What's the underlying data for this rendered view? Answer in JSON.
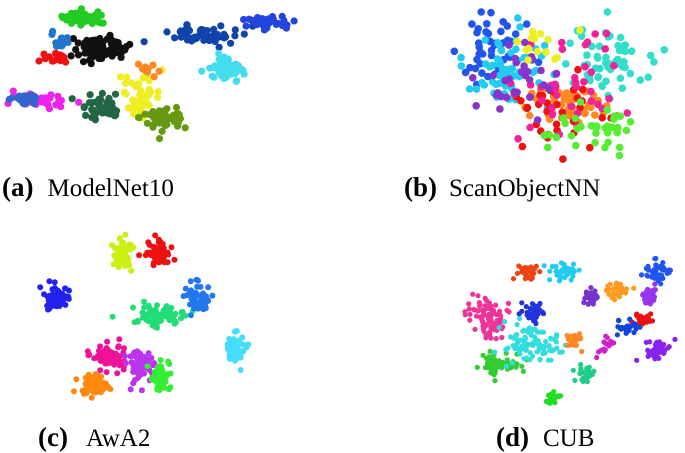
{
  "panels": [
    {
      "label": "(a)",
      "caption": "ModelNet10"
    },
    {
      "label": "(b)",
      "caption": "ScanObjectNN"
    },
    {
      "label": "(c)",
      "caption": "AwA2"
    },
    {
      "label": "(d)",
      "caption": "CUB"
    }
  ]
}
